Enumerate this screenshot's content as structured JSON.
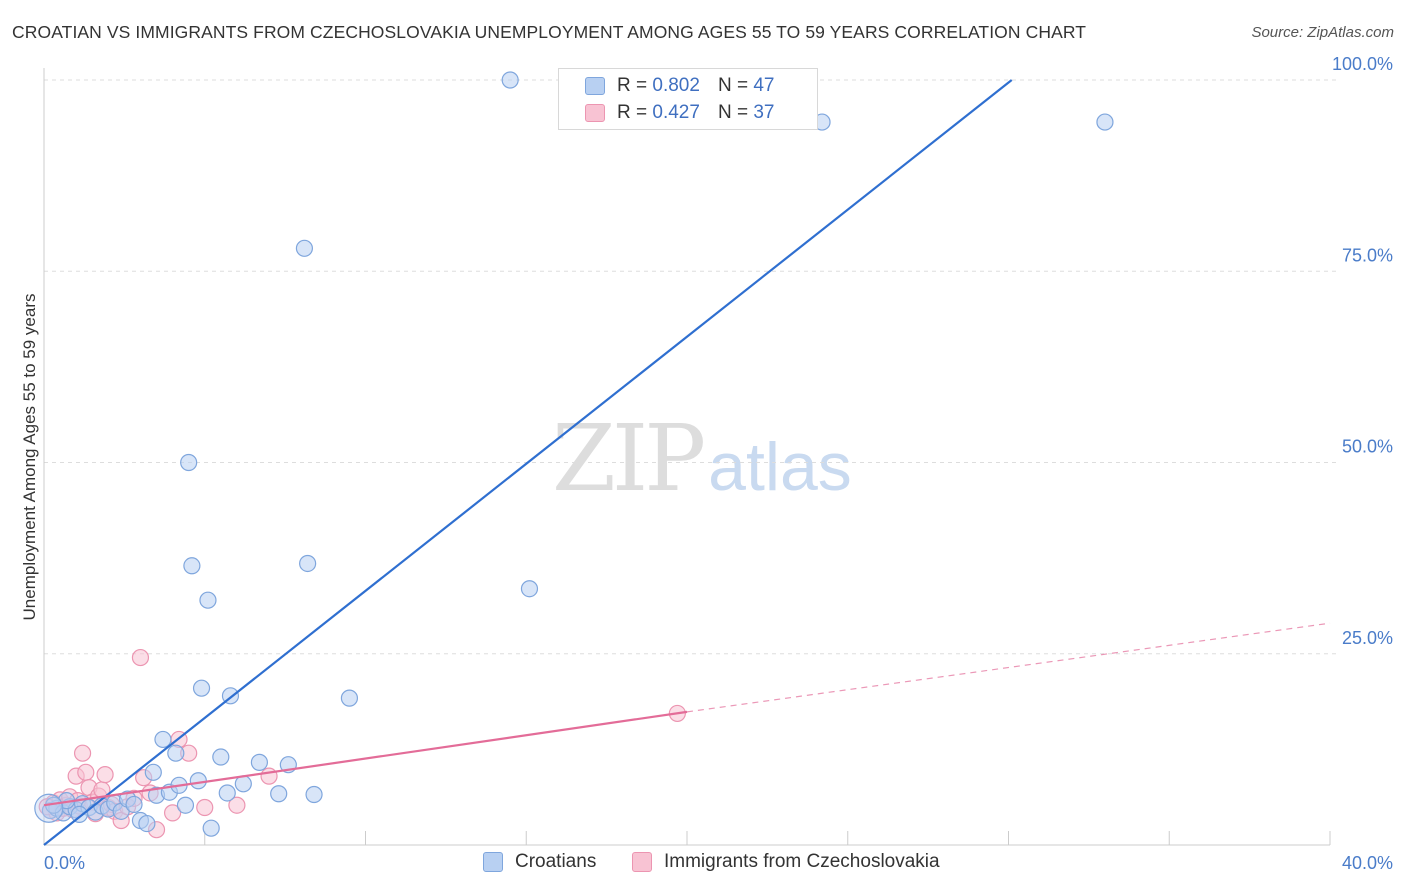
{
  "header": {
    "title": "CROATIAN VS IMMIGRANTS FROM CZECHOSLOVAKIA UNEMPLOYMENT AMONG AGES 55 TO 59 YEARS CORRELATION CHART",
    "source": "Source: ZipAtlas.com"
  },
  "watermark": {
    "zip": "ZIP",
    "atlas": "atlas"
  },
  "legend": {
    "rows": [
      {
        "r_label": "R =",
        "r_value": "0.802",
        "n_label": "N =",
        "n_value": "47"
      },
      {
        "r_label": "R =",
        "r_value": "0.427",
        "n_label": "N =",
        "n_value": "37"
      }
    ]
  },
  "colors": {
    "blue_fill": "#b8d0f2",
    "blue_stroke": "#7fa6dd",
    "blue_line": "#2f6fd0",
    "pink_fill": "#f8c3d3",
    "pink_stroke": "#ec95b1",
    "pink_line": "#e36c98",
    "grid": "#dddddd",
    "tick_text": "#4a7cc9"
  },
  "chart_data": {
    "type": "scatter",
    "title": "CROATIAN VS IMMIGRANTS FROM CZECHOSLOVAKIA UNEMPLOYMENT AMONG AGES 55 TO 59 YEARS CORRELATION CHART",
    "xlabel": "",
    "ylabel": "Unemployment Among Ages 55 to 59 years",
    "xlim": [
      0,
      40
    ],
    "ylim": [
      0,
      100
    ],
    "x_tick_labels": [
      "0.0%",
      "40.0%"
    ],
    "y_tick_labels": [
      "25.0%",
      "50.0%",
      "75.0%",
      "100.0%"
    ],
    "y_ticks": [
      25,
      50,
      75,
      100
    ],
    "grid": true,
    "series": [
      {
        "name": "Croatians",
        "r": 0.802,
        "n": 47,
        "trend": {
          "x": [
            0,
            30.1
          ],
          "y": [
            0,
            100
          ]
        },
        "points": [
          [
            0.2,
            4.5
          ],
          [
            0.4,
            4.8
          ],
          [
            0.6,
            4.2
          ],
          [
            0.8,
            5.0
          ],
          [
            1.0,
            4.6
          ],
          [
            1.2,
            5.4
          ],
          [
            1.4,
            4.9
          ],
          [
            1.6,
            4.3
          ],
          [
            1.8,
            5.1
          ],
          [
            2.0,
            4.7
          ],
          [
            2.2,
            5.5
          ],
          [
            2.4,
            4.4
          ],
          [
            2.6,
            6.0
          ],
          [
            2.8,
            5.3
          ],
          [
            3.0,
            3.2
          ],
          [
            3.2,
            2.8
          ],
          [
            3.4,
            9.5
          ],
          [
            3.5,
            6.5
          ],
          [
            3.7,
            13.8
          ],
          [
            3.9,
            6.9
          ],
          [
            4.1,
            12.0
          ],
          [
            4.2,
            7.8
          ],
          [
            4.4,
            5.2
          ],
          [
            4.5,
            50.0
          ],
          [
            4.6,
            36.5
          ],
          [
            4.8,
            8.4
          ],
          [
            4.9,
            20.5
          ],
          [
            5.1,
            32.0
          ],
          [
            5.2,
            2.2
          ],
          [
            5.5,
            11.5
          ],
          [
            5.7,
            6.8
          ],
          [
            5.8,
            19.5
          ],
          [
            6.2,
            8.0
          ],
          [
            6.7,
            10.8
          ],
          [
            7.3,
            6.7
          ],
          [
            7.6,
            10.5
          ],
          [
            8.1,
            78.0
          ],
          [
            8.2,
            36.8
          ],
          [
            8.4,
            6.6
          ],
          [
            9.5,
            19.2
          ],
          [
            14.5,
            100.0
          ],
          [
            15.1,
            33.5
          ],
          [
            24.2,
            94.5
          ],
          [
            33.0,
            94.5
          ],
          [
            1.1,
            4.0
          ],
          [
            0.7,
            5.8
          ],
          [
            0.3,
            5.2
          ]
        ]
      },
      {
        "name": "Immigrants from Czechoslovakia",
        "r": 0.427,
        "n": 37,
        "trend": {
          "x": [
            0,
            20
          ],
          "y": [
            5.2,
            17.4
          ]
        },
        "trend_extension": {
          "x": [
            20,
            40
          ],
          "y": [
            17.4,
            29.0
          ]
        },
        "points": [
          [
            0.2,
            4.5
          ],
          [
            0.3,
            5.5
          ],
          [
            0.4,
            4.2
          ],
          [
            0.5,
            5.9
          ],
          [
            0.6,
            4.8
          ],
          [
            0.7,
            5.2
          ],
          [
            0.8,
            6.3
          ],
          [
            0.9,
            4.6
          ],
          [
            1.0,
            9.0
          ],
          [
            1.1,
            5.1
          ],
          [
            1.2,
            12.0
          ],
          [
            1.3,
            9.5
          ],
          [
            1.4,
            7.5
          ],
          [
            1.5,
            5.6
          ],
          [
            1.6,
            4.1
          ],
          [
            1.7,
            6.4
          ],
          [
            1.8,
            7.2
          ],
          [
            1.9,
            9.2
          ],
          [
            2.0,
            4.9
          ],
          [
            2.1,
            5.3
          ],
          [
            2.2,
            4.4
          ],
          [
            2.4,
            3.2
          ],
          [
            2.6,
            5.0
          ],
          [
            2.8,
            6.1
          ],
          [
            3.0,
            24.5
          ],
          [
            3.1,
            8.8
          ],
          [
            3.3,
            6.8
          ],
          [
            3.5,
            2.0
          ],
          [
            4.0,
            4.2
          ],
          [
            4.2,
            13.8
          ],
          [
            4.5,
            12.0
          ],
          [
            5.0,
            4.9
          ],
          [
            6.0,
            5.2
          ],
          [
            7.0,
            9.0
          ],
          [
            19.7,
            17.2
          ],
          [
            0.1,
            5.0
          ],
          [
            1.05,
            5.8
          ]
        ]
      }
    ]
  },
  "bottom_legend": {
    "items": [
      {
        "label": "Croatians"
      },
      {
        "label": "Immigrants from Czechoslovakia"
      }
    ]
  }
}
